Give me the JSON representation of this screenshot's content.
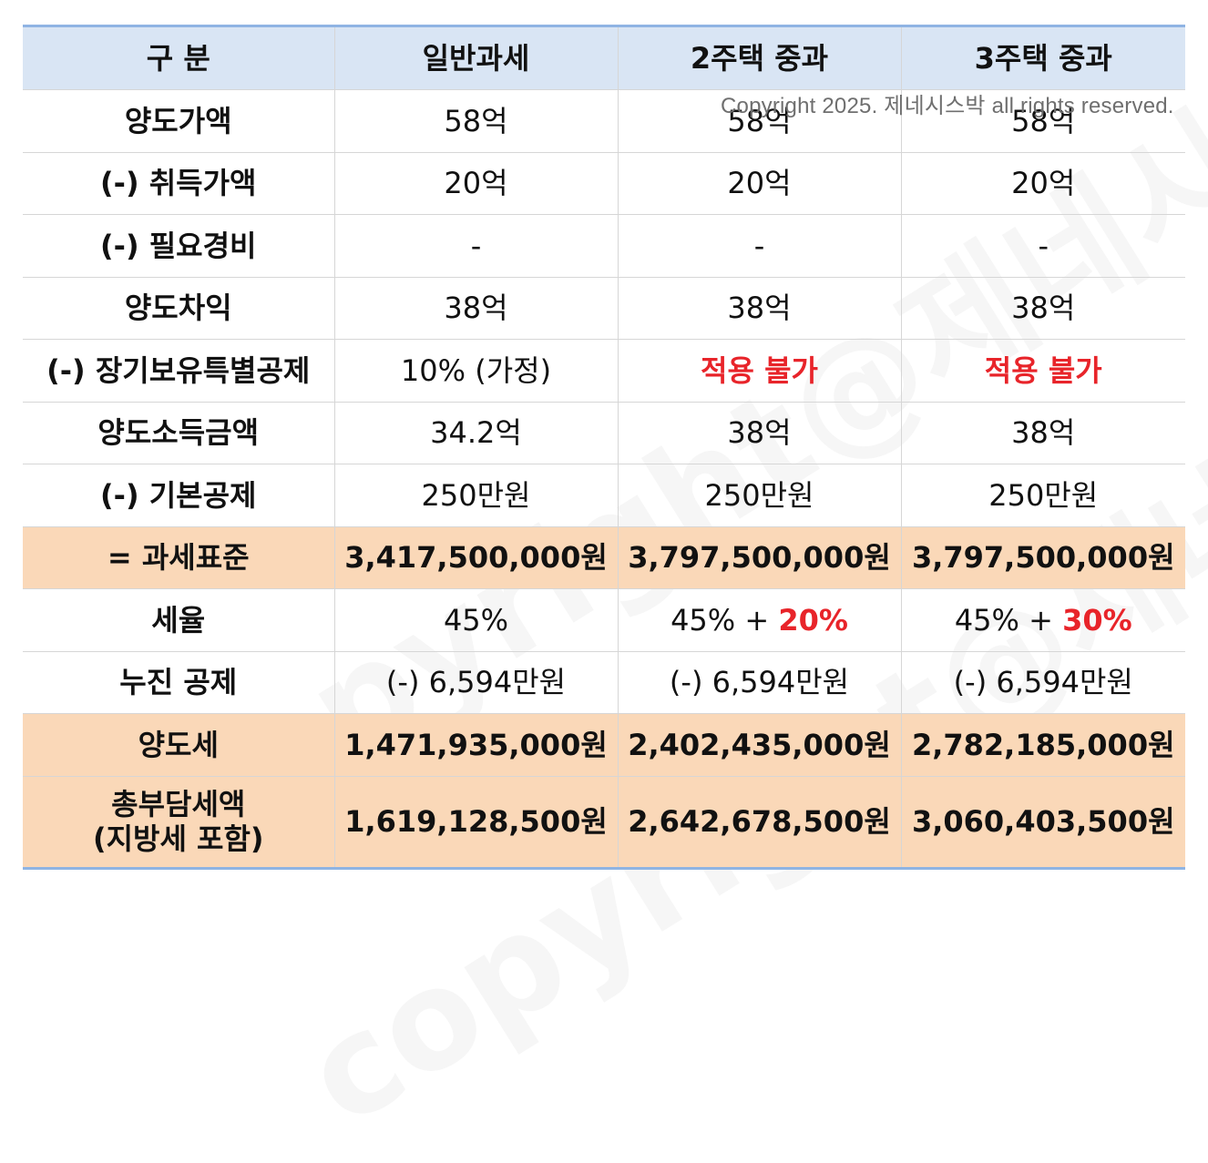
{
  "header": {
    "label": "구 분",
    "columns": [
      "일반과세",
      "2주택 중과",
      "3주택 중과"
    ]
  },
  "rows": [
    {
      "label": "양도가액",
      "cells": [
        "58억",
        "58억",
        "58억"
      ]
    },
    {
      "label": "(-) 취득가액",
      "cells": [
        "20억",
        "20억",
        "20억"
      ]
    },
    {
      "label": "(-) 필요경비",
      "cells": [
        "-",
        "-",
        "-"
      ]
    },
    {
      "label": "양도차익",
      "cells": [
        "38억",
        "38억",
        "38억"
      ]
    },
    {
      "label": "(-) 장기보유특별공제",
      "cells": [
        "10% (가정)",
        "적용 불가",
        "적용 불가"
      ]
    },
    {
      "label": "양도소득금액",
      "cells": [
        "34.2억",
        "38억",
        "38억"
      ]
    },
    {
      "label": "(-) 기본공제",
      "cells": [
        "250만원",
        "250만원",
        "250만원"
      ]
    },
    {
      "label": "= 과세표준",
      "cells": [
        "3,417,500,000원",
        "3,797,500,000원",
        "3,797,500,000원"
      ]
    },
    {
      "label": "세율",
      "cells": [
        "45%",
        "45% + ",
        "45% + "
      ],
      "surcharge": [
        "",
        "20%",
        "30%"
      ]
    },
    {
      "label": "누진 공제",
      "cells": [
        "(-) 6,594만원",
        "(-) 6,594만원",
        "(-) 6,594만원"
      ]
    },
    {
      "label": "양도세",
      "cells": [
        "1,471,935,000원",
        "2,402,435,000원",
        "2,782,185,000원"
      ]
    },
    {
      "label_line1": "총부담세액",
      "label_line2": "(지방세 포함)",
      "cells": [
        "1,619,128,500원",
        "2,642,678,500원",
        "3,060,403,500원"
      ]
    }
  ],
  "copyright": "Copyright 2025. 제네시스박 all rights reserved.",
  "watermark": "copyright@제네시스박",
  "colors": {
    "header_bg": "#d9e5f4",
    "highlight_bg": "#fad8b8",
    "accent_red": "#e8242a",
    "border_blue": "#8fb4e3"
  }
}
